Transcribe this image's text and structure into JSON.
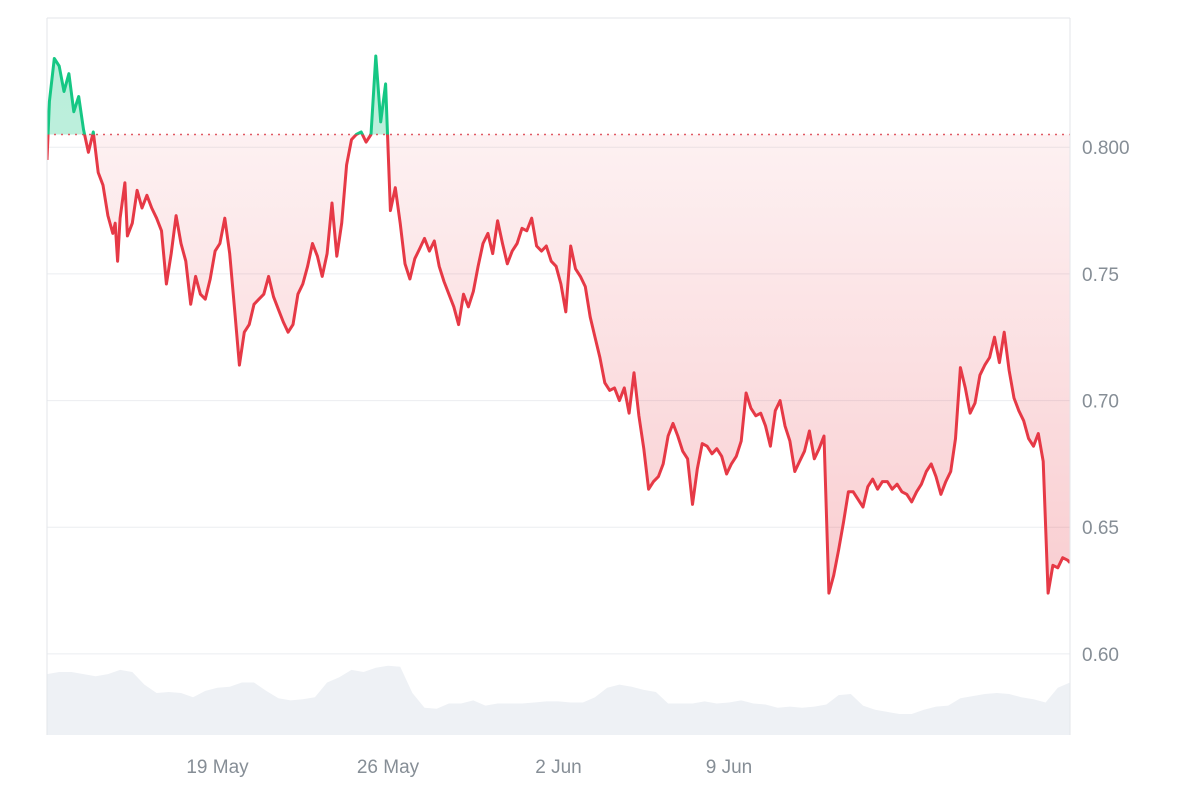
{
  "chart_data": {
    "type": "line",
    "title": "",
    "xlabel": "",
    "ylabel": "",
    "x_tick_labels": [
      "19 May",
      "26 May",
      "2 Jun",
      "9 Jun"
    ],
    "x_ticks": [
      {
        "label": "19 May",
        "day": 19
      },
      {
        "label": "26 May",
        "day": 26
      },
      {
        "label": "2 Jun",
        "day": 33
      },
      {
        "label": "9 Jun",
        "day": 40
      }
    ],
    "y_tick_labels": [
      "0.800",
      "0.75",
      "0.70",
      "0.65",
      "0.60"
    ],
    "y_ticks": [
      0.8,
      0.75,
      0.7,
      0.65,
      0.6
    ],
    "ylim": [
      0.568,
      0.851
    ],
    "baseline": 0.805,
    "grid": true,
    "legend": "none",
    "colors": {
      "down": "#e63946",
      "up": "#16c784",
      "baseline": "#e05a64",
      "volume": "#eef1f5",
      "grid": "#ebedf0",
      "axis_text": "#868e96"
    },
    "series": [
      {
        "values": [
          [
            0.0,
            0.795
          ],
          [
            0.1,
            0.818
          ],
          [
            0.3,
            0.835
          ],
          [
            0.5,
            0.832
          ],
          [
            0.7,
            0.822
          ],
          [
            0.9,
            0.829
          ],
          [
            1.1,
            0.814
          ],
          [
            1.3,
            0.82
          ],
          [
            1.5,
            0.807
          ],
          [
            1.7,
            0.798
          ],
          [
            1.9,
            0.806
          ],
          [
            2.1,
            0.79
          ],
          [
            2.3,
            0.785
          ],
          [
            2.5,
            0.773
          ],
          [
            2.7,
            0.766
          ],
          [
            2.8,
            0.77
          ],
          [
            2.9,
            0.755
          ],
          [
            3.0,
            0.772
          ],
          [
            3.2,
            0.786
          ],
          [
            3.3,
            0.765
          ],
          [
            3.5,
            0.77
          ],
          [
            3.7,
            0.783
          ],
          [
            3.9,
            0.776
          ],
          [
            4.1,
            0.781
          ],
          [
            4.3,
            0.776
          ],
          [
            4.5,
            0.772
          ],
          [
            4.7,
            0.767
          ],
          [
            4.9,
            0.746
          ],
          [
            5.1,
            0.758
          ],
          [
            5.3,
            0.773
          ],
          [
            5.5,
            0.762
          ],
          [
            5.7,
            0.755
          ],
          [
            5.9,
            0.738
          ],
          [
            6.1,
            0.749
          ],
          [
            6.3,
            0.742
          ],
          [
            6.5,
            0.74
          ],
          [
            6.7,
            0.748
          ],
          [
            6.9,
            0.759
          ],
          [
            7.1,
            0.762
          ],
          [
            7.3,
            0.772
          ],
          [
            7.5,
            0.758
          ],
          [
            7.7,
            0.736
          ],
          [
            7.9,
            0.714
          ],
          [
            8.1,
            0.727
          ],
          [
            8.3,
            0.73
          ],
          [
            8.5,
            0.738
          ],
          [
            8.7,
            0.74
          ],
          [
            8.9,
            0.742
          ],
          [
            9.1,
            0.749
          ],
          [
            9.3,
            0.741
          ],
          [
            9.5,
            0.736
          ],
          [
            9.7,
            0.731
          ],
          [
            9.9,
            0.727
          ],
          [
            10.1,
            0.73
          ],
          [
            10.3,
            0.742
          ],
          [
            10.5,
            0.746
          ],
          [
            10.7,
            0.753
          ],
          [
            10.9,
            0.762
          ],
          [
            11.1,
            0.757
          ],
          [
            11.3,
            0.749
          ],
          [
            11.5,
            0.758
          ],
          [
            11.7,
            0.778
          ],
          [
            11.9,
            0.757
          ],
          [
            12.1,
            0.77
          ],
          [
            12.3,
            0.793
          ],
          [
            12.5,
            0.803
          ],
          [
            12.7,
            0.805
          ],
          [
            12.9,
            0.806
          ],
          [
            13.1,
            0.802
          ],
          [
            13.3,
            0.805
          ],
          [
            13.5,
            0.836
          ],
          [
            13.7,
            0.81
          ],
          [
            13.9,
            0.825
          ],
          [
            14.1,
            0.775
          ],
          [
            14.3,
            0.784
          ],
          [
            14.5,
            0.77
          ],
          [
            14.7,
            0.754
          ],
          [
            14.9,
            0.748
          ],
          [
            15.1,
            0.756
          ],
          [
            15.3,
            0.76
          ],
          [
            15.5,
            0.764
          ],
          [
            15.7,
            0.759
          ],
          [
            15.9,
            0.763
          ],
          [
            16.1,
            0.753
          ],
          [
            16.3,
            0.747
          ],
          [
            16.5,
            0.742
          ],
          [
            16.7,
            0.737
          ],
          [
            16.9,
            0.73
          ],
          [
            17.1,
            0.742
          ],
          [
            17.3,
            0.737
          ],
          [
            17.5,
            0.743
          ],
          [
            17.7,
            0.753
          ],
          [
            17.9,
            0.762
          ],
          [
            18.1,
            0.766
          ],
          [
            18.3,
            0.758
          ],
          [
            18.5,
            0.771
          ],
          [
            18.7,
            0.762
          ],
          [
            18.9,
            0.754
          ],
          [
            19.1,
            0.759
          ],
          [
            19.3,
            0.762
          ],
          [
            19.5,
            0.768
          ],
          [
            19.7,
            0.767
          ],
          [
            19.9,
            0.772
          ],
          [
            20.1,
            0.761
          ],
          [
            20.3,
            0.759
          ],
          [
            20.5,
            0.761
          ],
          [
            20.7,
            0.755
          ],
          [
            20.9,
            0.753
          ],
          [
            21.1,
            0.746
          ],
          [
            21.3,
            0.735
          ],
          [
            21.5,
            0.761
          ],
          [
            21.7,
            0.752
          ],
          [
            21.9,
            0.749
          ],
          [
            22.1,
            0.745
          ],
          [
            22.3,
            0.733
          ],
          [
            22.5,
            0.725
          ],
          [
            22.7,
            0.717
          ],
          [
            22.9,
            0.707
          ],
          [
            23.1,
            0.704
          ],
          [
            23.3,
            0.705
          ],
          [
            23.5,
            0.7
          ],
          [
            23.7,
            0.705
          ],
          [
            23.9,
            0.695
          ],
          [
            24.1,
            0.711
          ],
          [
            24.3,
            0.694
          ],
          [
            24.5,
            0.681
          ],
          [
            24.7,
            0.665
          ],
          [
            24.9,
            0.668
          ],
          [
            25.1,
            0.67
          ],
          [
            25.3,
            0.675
          ],
          [
            25.5,
            0.686
          ],
          [
            25.7,
            0.691
          ],
          [
            25.9,
            0.686
          ],
          [
            26.1,
            0.68
          ],
          [
            26.3,
            0.677
          ],
          [
            26.5,
            0.659
          ],
          [
            26.7,
            0.673
          ],
          [
            26.9,
            0.683
          ],
          [
            27.1,
            0.682
          ],
          [
            27.3,
            0.679
          ],
          [
            27.5,
            0.681
          ],
          [
            27.7,
            0.678
          ],
          [
            27.9,
            0.671
          ],
          [
            28.1,
            0.675
          ],
          [
            28.3,
            0.678
          ],
          [
            28.5,
            0.684
          ],
          [
            28.7,
            0.703
          ],
          [
            28.9,
            0.697
          ],
          [
            29.1,
            0.694
          ],
          [
            29.3,
            0.695
          ],
          [
            29.5,
            0.69
          ],
          [
            29.7,
            0.682
          ],
          [
            29.9,
            0.696
          ],
          [
            30.1,
            0.7
          ],
          [
            30.3,
            0.69
          ],
          [
            30.5,
            0.684
          ],
          [
            30.7,
            0.672
          ],
          [
            30.9,
            0.676
          ],
          [
            31.1,
            0.68
          ],
          [
            31.3,
            0.688
          ],
          [
            31.5,
            0.677
          ],
          [
            31.7,
            0.681
          ],
          [
            31.9,
            0.686
          ],
          [
            32.1,
            0.624
          ],
          [
            32.3,
            0.631
          ],
          [
            32.5,
            0.641
          ],
          [
            32.7,
            0.652
          ],
          [
            32.9,
            0.664
          ],
          [
            33.1,
            0.664
          ],
          [
            33.3,
            0.661
          ],
          [
            33.5,
            0.658
          ],
          [
            33.7,
            0.666
          ],
          [
            33.9,
            0.669
          ],
          [
            34.1,
            0.665
          ],
          [
            34.3,
            0.668
          ],
          [
            34.5,
            0.668
          ],
          [
            34.7,
            0.665
          ],
          [
            34.9,
            0.667
          ],
          [
            35.1,
            0.664
          ],
          [
            35.3,
            0.663
          ],
          [
            35.5,
            0.66
          ],
          [
            35.7,
            0.664
          ],
          [
            35.9,
            0.667
          ],
          [
            36.1,
            0.672
          ],
          [
            36.3,
            0.675
          ],
          [
            36.5,
            0.67
          ],
          [
            36.7,
            0.663
          ],
          [
            36.9,
            0.668
          ],
          [
            37.1,
            0.672
          ],
          [
            37.3,
            0.685
          ],
          [
            37.5,
            0.713
          ],
          [
            37.7,
            0.705
          ],
          [
            37.9,
            0.695
          ],
          [
            38.1,
            0.699
          ],
          [
            38.3,
            0.71
          ],
          [
            38.5,
            0.714
          ],
          [
            38.7,
            0.717
          ],
          [
            38.9,
            0.725
          ],
          [
            39.1,
            0.715
          ],
          [
            39.3,
            0.727
          ],
          [
            39.5,
            0.712
          ],
          [
            39.7,
            0.701
          ],
          [
            39.9,
            0.696
          ],
          [
            40.1,
            0.692
          ],
          [
            40.3,
            0.685
          ],
          [
            40.5,
            0.682
          ],
          [
            40.7,
            0.687
          ],
          [
            40.9,
            0.676
          ],
          [
            41.1,
            0.624
          ],
          [
            41.3,
            0.635
          ],
          [
            41.5,
            0.634
          ],
          [
            41.7,
            0.638
          ],
          [
            41.9,
            0.637
          ],
          [
            42.0,
            0.636
          ]
        ]
      }
    ],
    "volume": [
      [
        0.0,
        0.58
      ],
      [
        0.5,
        0.6
      ],
      [
        1.0,
        0.6
      ],
      [
        1.5,
        0.58
      ],
      [
        2.0,
        0.56
      ],
      [
        2.5,
        0.58
      ],
      [
        3.0,
        0.62
      ],
      [
        3.5,
        0.6
      ],
      [
        4.0,
        0.48
      ],
      [
        4.5,
        0.4
      ],
      [
        5.0,
        0.41
      ],
      [
        5.5,
        0.4
      ],
      [
        6.0,
        0.36
      ],
      [
        6.5,
        0.42
      ],
      [
        7.0,
        0.45
      ],
      [
        7.5,
        0.46
      ],
      [
        8.0,
        0.5
      ],
      [
        8.5,
        0.5
      ],
      [
        9.0,
        0.42
      ],
      [
        9.5,
        0.35
      ],
      [
        10.0,
        0.33
      ],
      [
        10.5,
        0.34
      ],
      [
        11.0,
        0.36
      ],
      [
        11.5,
        0.5
      ],
      [
        12.0,
        0.55
      ],
      [
        12.5,
        0.62
      ],
      [
        13.0,
        0.6
      ],
      [
        13.5,
        0.64
      ],
      [
        14.0,
        0.66
      ],
      [
        14.5,
        0.65
      ],
      [
        15.0,
        0.4
      ],
      [
        15.5,
        0.26
      ],
      [
        16.0,
        0.25
      ],
      [
        16.5,
        0.3
      ],
      [
        17.0,
        0.3
      ],
      [
        17.5,
        0.33
      ],
      [
        18.0,
        0.28
      ],
      [
        18.5,
        0.3
      ],
      [
        19.0,
        0.3
      ],
      [
        19.5,
        0.3
      ],
      [
        20.0,
        0.31
      ],
      [
        20.5,
        0.32
      ],
      [
        21.0,
        0.32
      ],
      [
        21.5,
        0.31
      ],
      [
        22.0,
        0.31
      ],
      [
        22.5,
        0.36
      ],
      [
        23.0,
        0.45
      ],
      [
        23.5,
        0.48
      ],
      [
        24.0,
        0.46
      ],
      [
        24.5,
        0.43
      ],
      [
        25.0,
        0.41
      ],
      [
        25.5,
        0.3
      ],
      [
        26.0,
        0.3
      ],
      [
        26.5,
        0.3
      ],
      [
        27.0,
        0.32
      ],
      [
        27.5,
        0.3
      ],
      [
        28.0,
        0.31
      ],
      [
        28.5,
        0.33
      ],
      [
        29.0,
        0.3
      ],
      [
        29.5,
        0.29
      ],
      [
        30.0,
        0.26
      ],
      [
        30.5,
        0.27
      ],
      [
        31.0,
        0.26
      ],
      [
        31.5,
        0.27
      ],
      [
        32.0,
        0.29
      ],
      [
        32.5,
        0.38
      ],
      [
        33.0,
        0.39
      ],
      [
        33.5,
        0.28
      ],
      [
        34.0,
        0.24
      ],
      [
        34.5,
        0.22
      ],
      [
        35.0,
        0.2
      ],
      [
        35.5,
        0.2
      ],
      [
        36.0,
        0.24
      ],
      [
        36.5,
        0.27
      ],
      [
        37.0,
        0.28
      ],
      [
        37.5,
        0.35
      ],
      [
        38.0,
        0.37
      ],
      [
        38.5,
        0.39
      ],
      [
        39.0,
        0.4
      ],
      [
        39.5,
        0.39
      ],
      [
        40.0,
        0.36
      ],
      [
        40.5,
        0.34
      ],
      [
        41.0,
        0.31
      ],
      [
        41.5,
        0.45
      ],
      [
        42.0,
        0.5
      ]
    ]
  }
}
